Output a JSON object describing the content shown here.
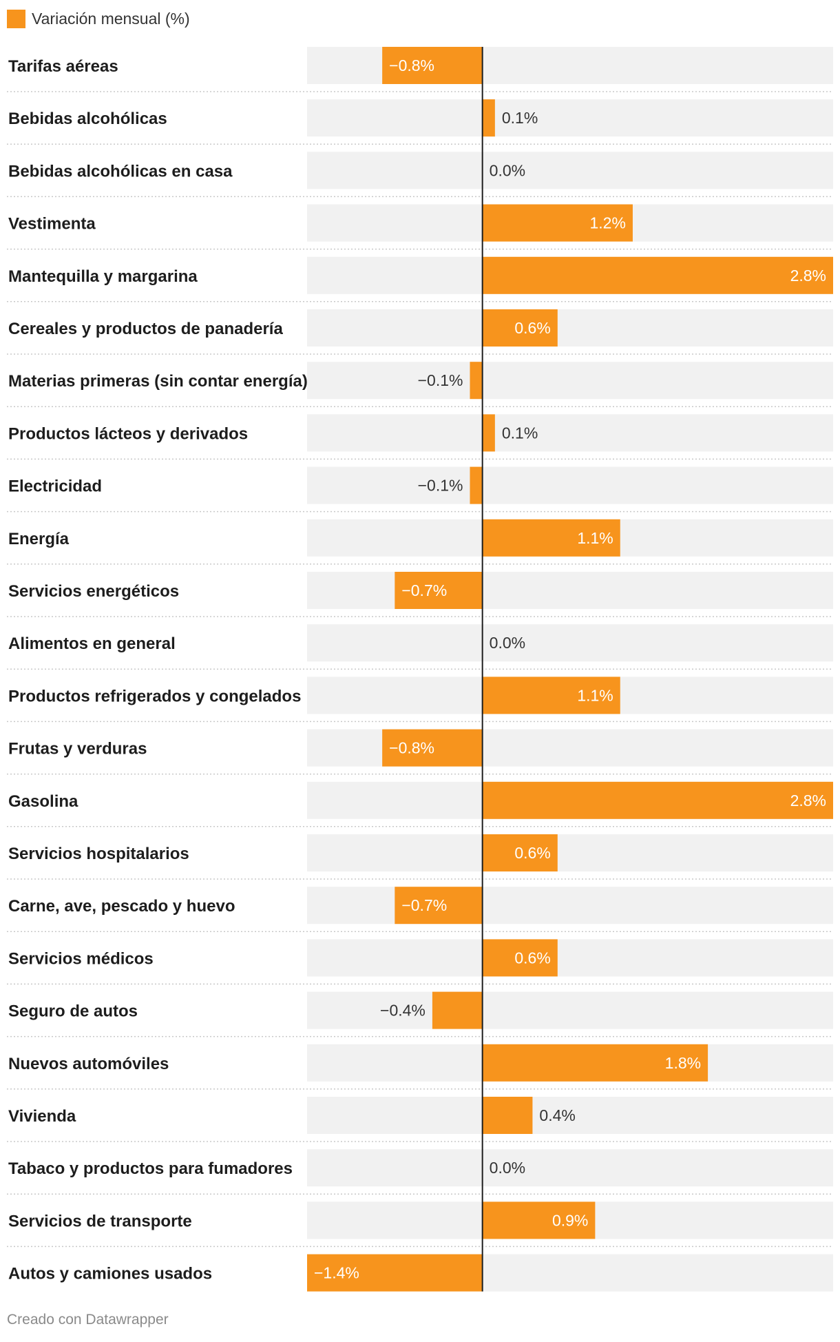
{
  "legend": {
    "label": "Variación mensual (%)",
    "color": "#f7941d"
  },
  "footer": {
    "credit": "Creado con Datawrapper"
  },
  "colors": {
    "bar": "#f7941d",
    "row_background": "#f1f1f1",
    "axis": "#1d1d1d",
    "separator": "#c8c8c8",
    "label_inside": "#ffffff",
    "label_outside": "#333333"
  },
  "chart_data": {
    "type": "bar",
    "orientation": "horizontal",
    "title": "",
    "xlim": [
      -1.4,
      2.8
    ],
    "series": [
      {
        "name": "Variación mensual (%)"
      }
    ],
    "rows": [
      {
        "category": "Tarifas aéreas",
        "value": -0.8,
        "label": "−0.8%"
      },
      {
        "category": "Bebidas alcohólicas",
        "value": 0.1,
        "label": "0.1%"
      },
      {
        "category": "Bebidas alcohólicas en casa",
        "value": 0.0,
        "label": "0.0%"
      },
      {
        "category": "Vestimenta",
        "value": 1.2,
        "label": "1.2%"
      },
      {
        "category": "Mantequilla y margarina",
        "value": 2.8,
        "label": "2.8%"
      },
      {
        "category": "Cereales y productos de panadería",
        "value": 0.6,
        "label": "0.6%"
      },
      {
        "category": "Materias primeras (sin contar energía)",
        "value": -0.1,
        "label": "−0.1%"
      },
      {
        "category": "Productos lácteos y derivados",
        "value": 0.1,
        "label": "0.1%"
      },
      {
        "category": "Electricidad",
        "value": -0.1,
        "label": "−0.1%"
      },
      {
        "category": "Energía",
        "value": 1.1,
        "label": "1.1%"
      },
      {
        "category": "Servicios energéticos",
        "value": -0.7,
        "label": "−0.7%"
      },
      {
        "category": "Alimentos en general",
        "value": 0.0,
        "label": "0.0%"
      },
      {
        "category": "Productos refrigerados y congelados",
        "value": 1.1,
        "label": "1.1%"
      },
      {
        "category": "Frutas y verduras",
        "value": -0.8,
        "label": "−0.8%"
      },
      {
        "category": "Gasolina",
        "value": 2.8,
        "label": "2.8%"
      },
      {
        "category": "Servicios hospitalarios",
        "value": 0.6,
        "label": "0.6%"
      },
      {
        "category": "Carne, ave, pescado y huevo",
        "value": -0.7,
        "label": "−0.7%"
      },
      {
        "category": "Servicios médicos",
        "value": 0.6,
        "label": "0.6%"
      },
      {
        "category": "Seguro de autos",
        "value": -0.4,
        "label": "−0.4%"
      },
      {
        "category": "Nuevos automóviles",
        "value": 1.8,
        "label": "1.8%"
      },
      {
        "category": "Vivienda",
        "value": 0.4,
        "label": "0.4%"
      },
      {
        "category": "Tabaco y productos para fumadores",
        "value": 0.0,
        "label": "0.0%"
      },
      {
        "category": "Servicios de transporte",
        "value": 0.9,
        "label": "0.9%"
      },
      {
        "category": "Autos y camiones usados",
        "value": -1.4,
        "label": "−1.4%"
      }
    ]
  }
}
